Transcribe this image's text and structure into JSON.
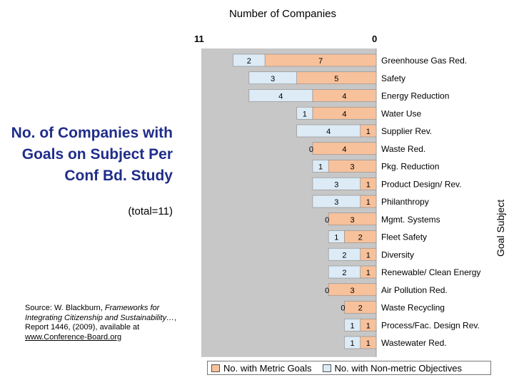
{
  "colors": {
    "metric": "#f7c19b",
    "non_metric": "#dcebf6",
    "plot_bg": "#c7c7c7",
    "title": "#1f2d8a"
  },
  "page": {
    "top_title": "Number of Companies",
    "axis_left_label": "11",
    "axis_right_label": "0",
    "side_title": "No. of Companies with Goals on Subject Per Conf Bd. Study",
    "subtitle": "(total=11)",
    "y_axis_label": "Goal Subject",
    "source_lines": [
      "Source: W. Blackburn, ",
      "Frameworks for Integrating Citizenship and Sustainability…",
      ", Report 1446, (2009), available at ",
      "www.Conference-Board.org"
    ]
  },
  "chart_data": {
    "type": "bar",
    "orientation": "horizontal-stacked-reversed",
    "title": "Number of Companies",
    "ylabel": "Goal Subject",
    "xlim": [
      11,
      0
    ],
    "categories": [
      "Greenhouse Gas Red.",
      "Safety",
      "Energy Reduction",
      "Water Use",
      "Supplier Rev.",
      "Waste Red.",
      "Pkg. Reduction",
      "Product Design/ Rev.",
      "Philanthropy",
      "Mgmt. Systems",
      "Fleet Safety",
      "Diversity",
      "Renewable/ Clean Energy",
      "Air Pollution Red.",
      "Waste Recycling",
      "Process/Fac. Design Rev.",
      "Wastewater Red."
    ],
    "series": [
      {
        "name": "No. with Metric Goals",
        "values": [
          7,
          5,
          4,
          4,
          1,
          4,
          3,
          1,
          1,
          3,
          2,
          1,
          1,
          3,
          2,
          1,
          1
        ]
      },
      {
        "name": "No. with Non-metric Objectives",
        "values": [
          2,
          3,
          4,
          1,
          4,
          0,
          1,
          3,
          3,
          0,
          1,
          2,
          2,
          0,
          0,
          1,
          1
        ]
      }
    ],
    "legend": "bottom"
  }
}
